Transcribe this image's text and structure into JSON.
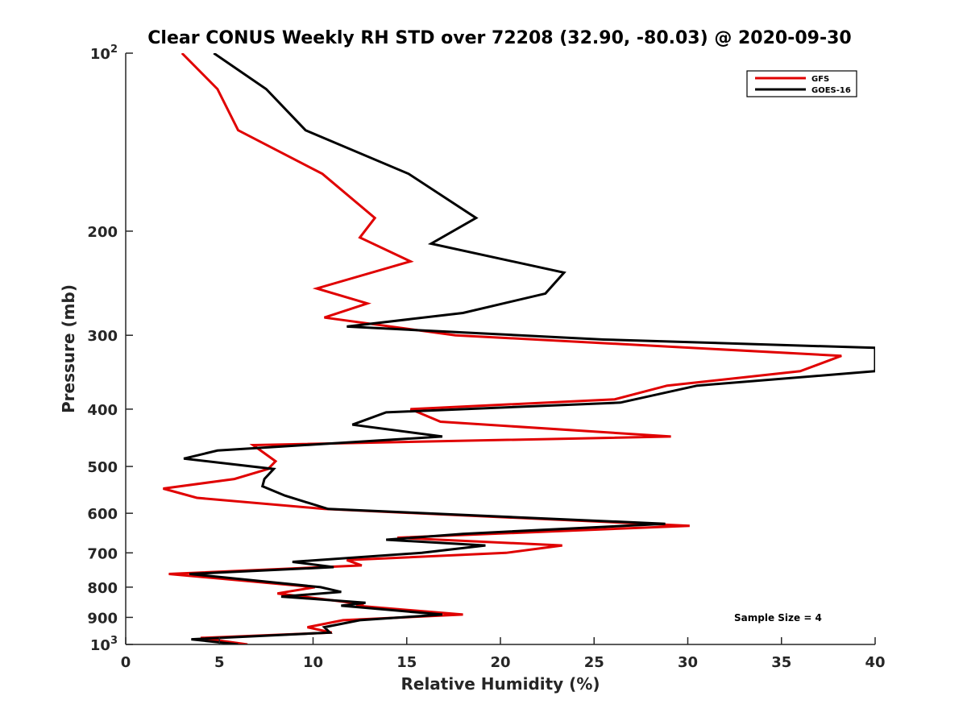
{
  "chart_data": {
    "type": "line",
    "title": "Clear CONUS Weekly RH STD over 72208 (32.90, -80.03) @ 2020-09-30",
    "xlabel": "Relative Humidity (%)",
    "ylabel": "Pressure (mb)",
    "xlim": [
      0,
      40
    ],
    "ylim": [
      100,
      1000
    ],
    "y_scale": "log",
    "y_reversed": true,
    "x_ticks": [
      "0",
      "5",
      "10",
      "15",
      "20",
      "25",
      "30",
      "35",
      "40"
    ],
    "y_ticks": [
      {
        "value": 100,
        "base": "10",
        "exp": "2"
      },
      {
        "value": 200,
        "label": "200"
      },
      {
        "value": 300,
        "label": "300"
      },
      {
        "value": 400,
        "label": "400"
      },
      {
        "value": 500,
        "label": "500"
      },
      {
        "value": 600,
        "label": "600"
      },
      {
        "value": 700,
        "label": "700"
      },
      {
        "value": 800,
        "label": "800"
      },
      {
        "value": 900,
        "label": "900"
      },
      {
        "value": 1000,
        "base": "10",
        "exp": "3"
      }
    ],
    "legend_position": "top-right",
    "annotation": "Sample Size = 4",
    "series": [
      {
        "name": "GFS",
        "color": "#e00000",
        "points": [
          [
            3.0,
            100
          ],
          [
            4.9,
            115
          ],
          [
            6.0,
            135
          ],
          [
            10.5,
            160
          ],
          [
            13.3,
            190
          ],
          [
            12.5,
            205
          ],
          [
            15.2,
            225
          ],
          [
            10.2,
            250
          ],
          [
            12.9,
            265
          ],
          [
            10.6,
            280
          ],
          [
            17.6,
            300
          ],
          [
            38.2,
            325
          ],
          [
            36.0,
            345
          ],
          [
            28.9,
            365
          ],
          [
            26.1,
            385
          ],
          [
            15.2,
            400
          ],
          [
            16.8,
            420
          ],
          [
            29.1,
            445
          ],
          [
            6.8,
            460
          ],
          [
            8.0,
            490
          ],
          [
            7.6,
            505
          ],
          [
            5.8,
            525
          ],
          [
            2.0,
            545
          ],
          [
            3.8,
            565
          ],
          [
            10.6,
            590
          ],
          [
            30.1,
            630
          ],
          [
            14.5,
            660
          ],
          [
            23.3,
            680
          ],
          [
            20.3,
            700
          ],
          [
            11.8,
            720
          ],
          [
            12.6,
            735
          ],
          [
            2.3,
            760
          ],
          [
            10.1,
            800
          ],
          [
            8.1,
            820
          ],
          [
            12.7,
            855
          ],
          [
            12.3,
            860
          ],
          [
            18.0,
            890
          ],
          [
            11.6,
            910
          ],
          [
            9.7,
            935
          ],
          [
            11.0,
            955
          ],
          [
            4.0,
            975
          ],
          [
            6.5,
            1000
          ]
        ]
      },
      {
        "name": "GOES-16",
        "color": "#000000",
        "points": [
          [
            4.7,
            100
          ],
          [
            7.5,
            115
          ],
          [
            9.6,
            135
          ],
          [
            15.1,
            160
          ],
          [
            18.7,
            190
          ],
          [
            16.3,
            210
          ],
          [
            23.4,
            235
          ],
          [
            22.4,
            255
          ],
          [
            18.0,
            275
          ],
          [
            11.8,
            290
          ],
          [
            25.5,
            305
          ],
          [
            40.0,
            315
          ],
          [
            40.0,
            345
          ],
          [
            30.5,
            365
          ],
          [
            26.4,
            390
          ],
          [
            13.9,
            405
          ],
          [
            12.1,
            425
          ],
          [
            16.9,
            445
          ],
          [
            4.9,
            470
          ],
          [
            3.1,
            485
          ],
          [
            7.9,
            505
          ],
          [
            7.4,
            525
          ],
          [
            7.3,
            540
          ],
          [
            8.5,
            560
          ],
          [
            10.8,
            590
          ],
          [
            28.8,
            625
          ],
          [
            18.0,
            650
          ],
          [
            13.9,
            665
          ],
          [
            19.2,
            680
          ],
          [
            15.8,
            700
          ],
          [
            8.9,
            725
          ],
          [
            11.1,
            740
          ],
          [
            3.4,
            760
          ],
          [
            10.4,
            800
          ],
          [
            11.5,
            815
          ],
          [
            8.3,
            830
          ],
          [
            12.8,
            850
          ],
          [
            11.5,
            860
          ],
          [
            16.9,
            890
          ],
          [
            12.5,
            910
          ],
          [
            10.6,
            935
          ],
          [
            10.9,
            955
          ],
          [
            3.5,
            980
          ],
          [
            6.0,
            1000
          ]
        ]
      }
    ]
  }
}
